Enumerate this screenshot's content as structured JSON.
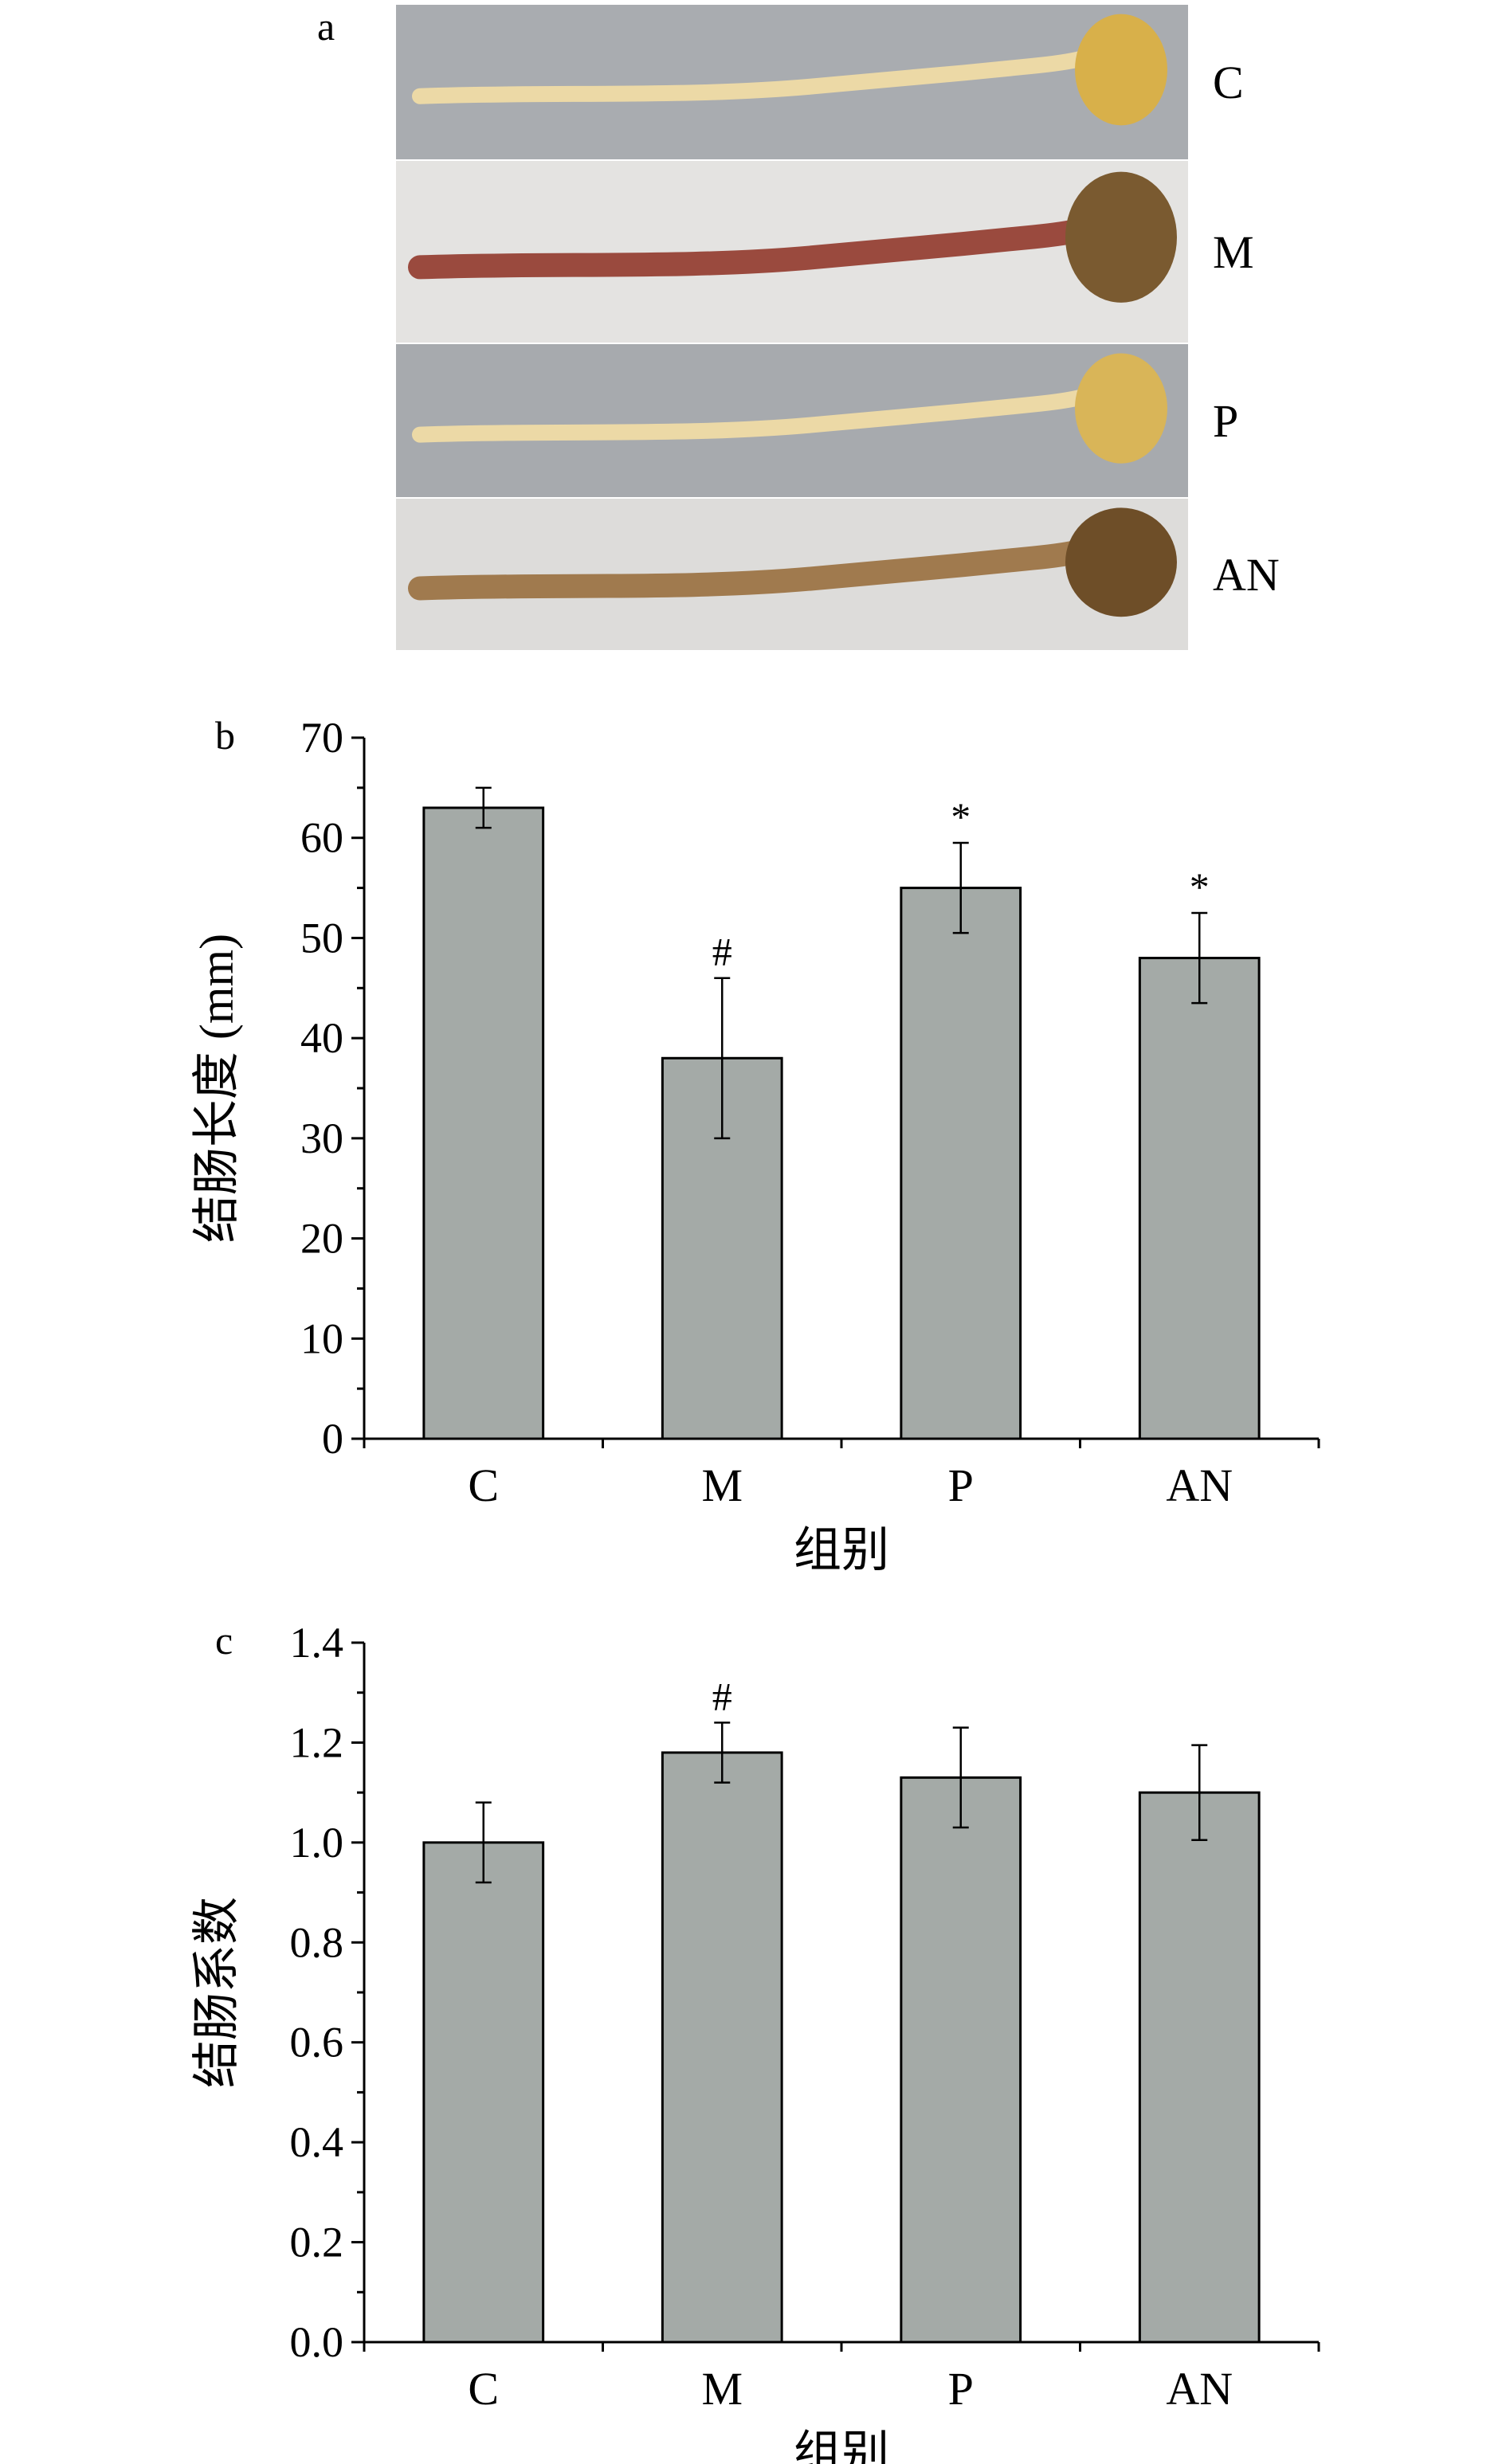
{
  "panel_a": {
    "letter": "a",
    "strips": [
      {
        "label": "C",
        "background": "#a9acb0",
        "tissue": "#ecd9a6",
        "bulb": "#d8b04a",
        "kind": "pale"
      },
      {
        "label": "M",
        "background": "#e4e3e1",
        "tissue": "#9a4a3e",
        "bulb": "#7a5a30",
        "kind": "dark"
      },
      {
        "label": "P",
        "background": "#a7aaae",
        "tissue": "#ecd9a6",
        "bulb": "#d9b558",
        "kind": "pale"
      },
      {
        "label": "AN",
        "background": "#dddcda",
        "tissue": "#a07a4e",
        "bulb": "#6e4e28",
        "kind": "dark"
      }
    ]
  },
  "chart_data": [
    {
      "panel": "b",
      "type": "bar",
      "categories": [
        "C",
        "M",
        "P",
        "AN"
      ],
      "values": [
        63,
        38,
        55,
        48
      ],
      "errors": [
        2,
        8,
        4.5,
        4.5
      ],
      "annotations": [
        "",
        "#",
        "*",
        "*"
      ],
      "xlabel": "组别",
      "ylabel": "结肠长度 (mm)",
      "ylim": [
        0,
        70
      ],
      "yticks": [
        "0",
        "10",
        "20",
        "30",
        "40",
        "50",
        "60",
        "70"
      ],
      "bar_color": "#a4aaa7"
    },
    {
      "panel": "c",
      "type": "bar",
      "categories": [
        "C",
        "M",
        "P",
        "AN"
      ],
      "values": [
        1.0,
        1.18,
        1.13,
        1.1
      ],
      "errors": [
        0.08,
        0.06,
        0.1,
        0.095
      ],
      "annotations": [
        "",
        "#",
        "",
        ""
      ],
      "xlabel": "组别",
      "ylabel": "结肠系数",
      "ylim": [
        0,
        1.4
      ],
      "yticks": [
        "0.0",
        "0.2",
        "0.4",
        "0.6",
        "0.8",
        "1.0",
        "1.2",
        "1.4"
      ],
      "bar_color": "#a4aaa7"
    }
  ]
}
